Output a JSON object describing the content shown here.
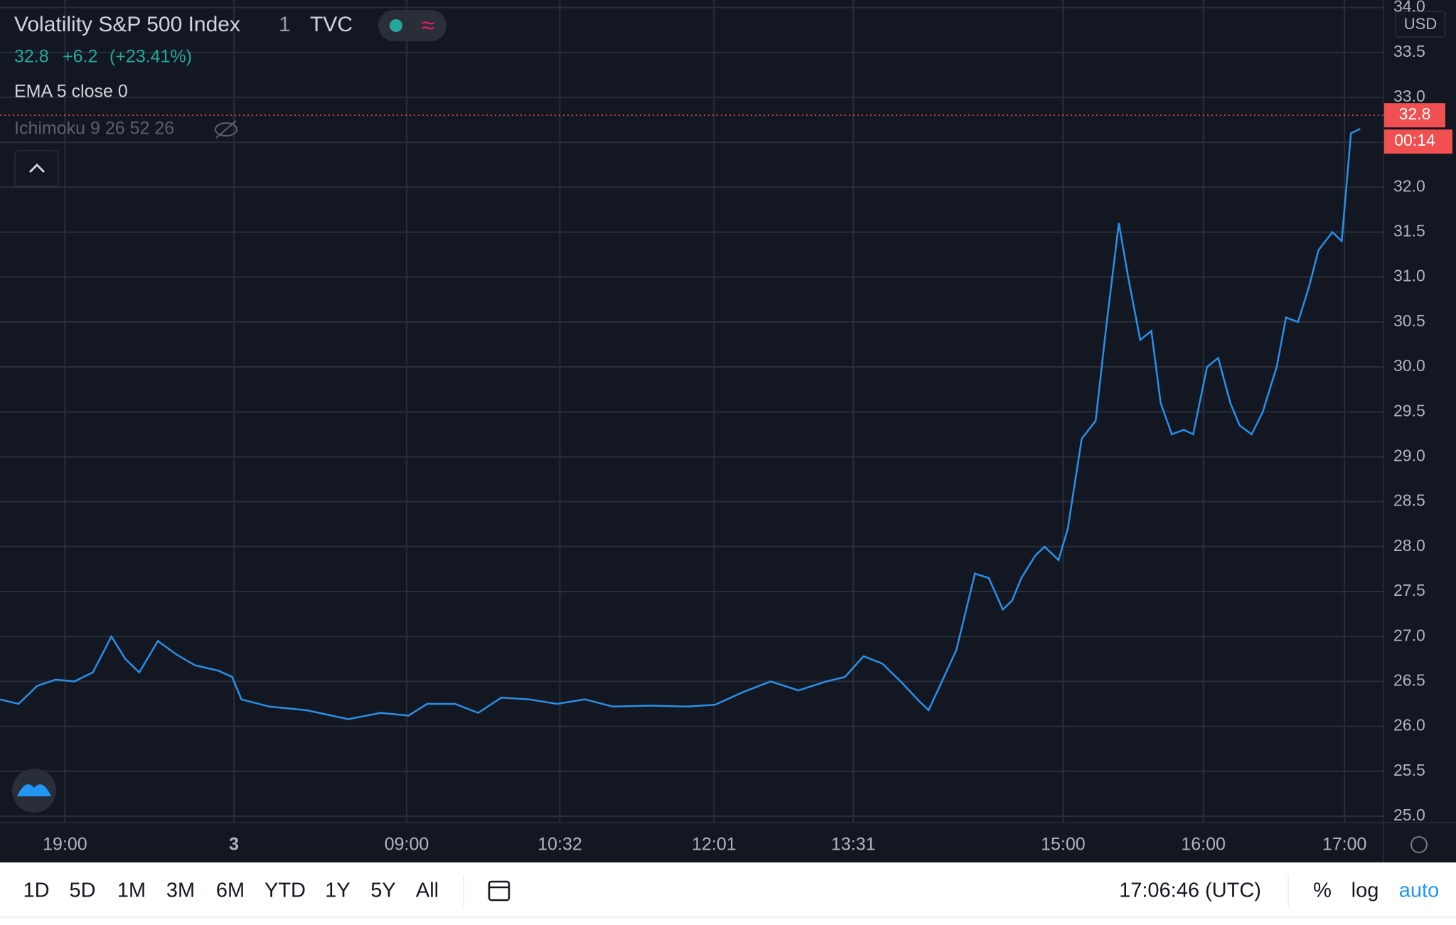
{
  "header": {
    "title": "Volatility S&P 500 Index",
    "interval": "1",
    "exchange": "TVC",
    "price": "32.8",
    "change": "+6.2",
    "change_pct": "(+23.41%)",
    "indicators": [
      "EMA 5 close 0",
      "Ichimoku 9 26 52 26"
    ]
  },
  "chart_data": {
    "type": "line",
    "currency": "USD",
    "x": [
      0,
      4,
      8,
      12,
      16,
      20,
      24,
      27,
      30,
      34,
      38,
      42,
      47,
      50,
      52,
      58,
      66,
      75,
      82,
      88,
      92,
      98,
      103,
      108,
      114,
      120,
      126,
      132,
      140,
      148,
      154,
      160,
      166,
      172,
      178,
      182,
      186,
      190,
      194,
      198,
      200,
      202,
      206,
      210,
      213,
      216,
      218,
      220,
      223,
      225,
      228,
      230,
      233,
      236,
      238.4,
      241,
      243,
      245.6,
      248,
      250,
      252.4,
      255,
      257,
      260,
      262.4,
      265,
      267,
      269.6,
      272,
      275,
      277,
      279.6,
      282,
      284,
      287,
      289,
      291,
      293
    ],
    "series": [
      {
        "name": "EMA 5 close 0",
        "color": "#2a8fe8",
        "values": [
          26.3,
          26.25,
          26.45,
          26.52,
          26.5,
          26.6,
          27.0,
          26.75,
          26.6,
          26.95,
          26.8,
          26.68,
          26.62,
          26.55,
          26.3,
          26.22,
          26.18,
          26.08,
          26.15,
          26.12,
          26.25,
          26.25,
          26.15,
          26.32,
          26.3,
          26.25,
          26.3,
          26.22,
          26.23,
          26.22,
          26.24,
          26.38,
          26.5,
          26.4,
          26.5,
          26.55,
          26.78,
          26.7,
          26.5,
          26.28,
          26.18,
          26.4,
          26.85,
          27.7,
          27.65,
          27.3,
          27.4,
          27.65,
          27.9,
          28.0,
          27.85,
          28.2,
          29.2,
          29.4,
          30.5,
          31.6,
          31.0,
          30.3,
          30.4,
          29.6,
          29.25,
          29.3,
          29.25,
          30.0,
          30.1,
          29.6,
          29.35,
          29.25,
          29.5,
          30.0,
          30.55,
          30.5,
          30.9,
          31.3,
          31.5,
          31.4,
          32.6,
          32.65
        ]
      }
    ],
    "last_price": 32.8,
    "last_price_label": "32.8",
    "last_price_color": "#f0504f",
    "countdown": "00:14",
    "xlim": [
      0,
      298
    ],
    "xticks": [
      {
        "value": 14,
        "label": "19:00"
      },
      {
        "value": 50.4,
        "label": "3"
      },
      {
        "value": 87.6,
        "label": "09:00"
      },
      {
        "value": 120.6,
        "label": "10:32"
      },
      {
        "value": 153.8,
        "label": "12:01"
      },
      {
        "value": 183.8,
        "label": "13:31"
      },
      {
        "value": 229,
        "label": "15:00"
      },
      {
        "value": 259.2,
        "label": "16:00"
      },
      {
        "value": 289.6,
        "label": "17:00"
      }
    ],
    "ylim": [
      25,
      34
    ],
    "yticks": [
      {
        "value": 25,
        "label": "25.0"
      },
      25.5,
      {
        "value": 26,
        "label": "26.0"
      },
      26.5,
      {
        "value": 27,
        "label": "27.0"
      },
      27.5,
      {
        "value": 28,
        "label": "28.0"
      },
      28.5,
      {
        "value": 29,
        "label": "29.0"
      },
      29.5,
      {
        "value": 30,
        "label": "30.0"
      },
      30.5,
      {
        "value": 31,
        "label": "31.0"
      },
      31.5,
      {
        "value": 32,
        "label": "32.0"
      },
      32.5,
      {
        "value": 33,
        "label": "33.0"
      },
      33.5,
      {
        "value": 34,
        "label": "34.0"
      }
    ],
    "grid": true
  },
  "toolbar": {
    "ranges": [
      "1D",
      "5D",
      "1M",
      "3M",
      "6M",
      "YTD",
      "1Y",
      "5Y",
      "All"
    ],
    "clock": "17:06:46 (UTC)",
    "options": [
      "%",
      "log",
      "auto"
    ]
  }
}
